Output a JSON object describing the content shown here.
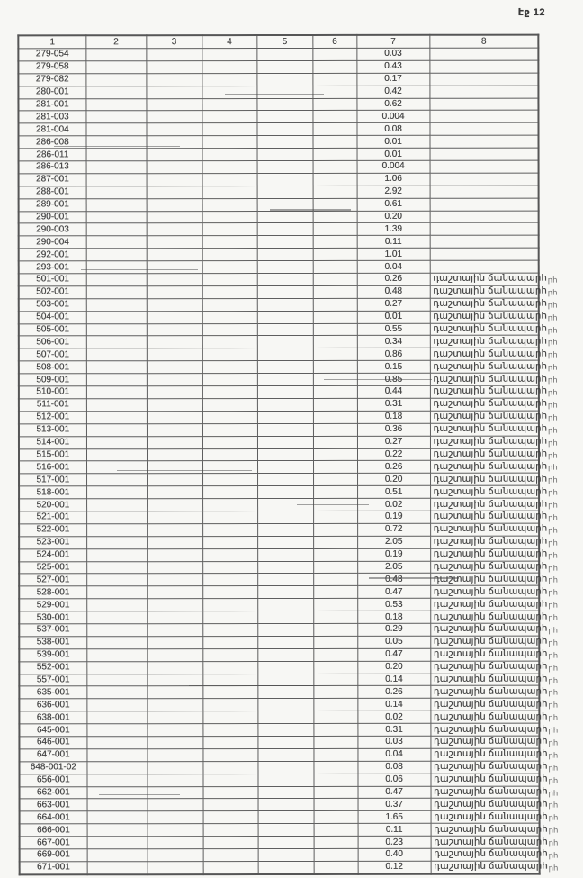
{
  "page": {
    "number_label": "էջ 12"
  },
  "table": {
    "headers": [
      "1",
      "2",
      "3",
      "4",
      "5",
      "6",
      "7",
      "8"
    ],
    "field_road_label": "դաշտային ճանապարհ",
    "margin_mark": "րհ",
    "rows": [
      {
        "code": "279-054",
        "value": "0.03",
        "road_note": false
      },
      {
        "code": "279-058",
        "value": "0.43",
        "road_note": false
      },
      {
        "code": "279-082",
        "value": "0.17",
        "road_note": false
      },
      {
        "code": "280-001",
        "value": "0.42",
        "road_note": false
      },
      {
        "code": "281-001",
        "value": "0.62",
        "road_note": false
      },
      {
        "code": "281-003",
        "value": "0.004",
        "road_note": false
      },
      {
        "code": "281-004",
        "value": "0.08",
        "road_note": false
      },
      {
        "code": "286-008",
        "value": "0.01",
        "road_note": false
      },
      {
        "code": "286-011",
        "value": "0.01",
        "road_note": false
      },
      {
        "code": "286-013",
        "value": "0.004",
        "road_note": false
      },
      {
        "code": "287-001",
        "value": "1.06",
        "road_note": false
      },
      {
        "code": "288-001",
        "value": "2.92",
        "road_note": false
      },
      {
        "code": "289-001",
        "value": "0.61",
        "road_note": false
      },
      {
        "code": "290-001",
        "value": "0.20",
        "road_note": false
      },
      {
        "code": "290-003",
        "value": "1.39",
        "road_note": false
      },
      {
        "code": "290-004",
        "value": "0.11",
        "road_note": false
      },
      {
        "code": "292-001",
        "value": "1.01",
        "road_note": false
      },
      {
        "code": "293-001",
        "value": "0.04",
        "road_note": false
      },
      {
        "code": "501-001",
        "value": "0.26",
        "road_note": true
      },
      {
        "code": "502-001",
        "value": "0.48",
        "road_note": true
      },
      {
        "code": "503-001",
        "value": "0.27",
        "road_note": true
      },
      {
        "code": "504-001",
        "value": "0.01",
        "road_note": true
      },
      {
        "code": "505-001",
        "value": "0.55",
        "road_note": true
      },
      {
        "code": "506-001",
        "value": "0.34",
        "road_note": true
      },
      {
        "code": "507-001",
        "value": "0.86",
        "road_note": true
      },
      {
        "code": "508-001",
        "value": "0.15",
        "road_note": true
      },
      {
        "code": "509-001",
        "value": "0.85",
        "road_note": true
      },
      {
        "code": "510-001",
        "value": "0.44",
        "road_note": true
      },
      {
        "code": "511-001",
        "value": "0.31",
        "road_note": true
      },
      {
        "code": "512-001",
        "value": "0.18",
        "road_note": true
      },
      {
        "code": "513-001",
        "value": "0.36",
        "road_note": true
      },
      {
        "code": "514-001",
        "value": "0.27",
        "road_note": true
      },
      {
        "code": "515-001",
        "value": "0.22",
        "road_note": true
      },
      {
        "code": "516-001",
        "value": "0.26",
        "road_note": true
      },
      {
        "code": "517-001",
        "value": "0.20",
        "road_note": true
      },
      {
        "code": "518-001",
        "value": "0.51",
        "road_note": true
      },
      {
        "code": "520-001",
        "value": "0.02",
        "road_note": true
      },
      {
        "code": "521-001",
        "value": "0.19",
        "road_note": true
      },
      {
        "code": "522-001",
        "value": "0.72",
        "road_note": true
      },
      {
        "code": "523-001",
        "value": "2.05",
        "road_note": true
      },
      {
        "code": "524-001",
        "value": "0.19",
        "road_note": true
      },
      {
        "code": "525-001",
        "value": "2.05",
        "road_note": true
      },
      {
        "code": "527-001",
        "value": "0.48",
        "road_note": true
      },
      {
        "code": "528-001",
        "value": "0.47",
        "road_note": true
      },
      {
        "code": "529-001",
        "value": "0.53",
        "road_note": true
      },
      {
        "code": "530-001",
        "value": "0.18",
        "road_note": true
      },
      {
        "code": "537-001",
        "value": "0.29",
        "road_note": true
      },
      {
        "code": "538-001",
        "value": "0.05",
        "road_note": true
      },
      {
        "code": "539-001",
        "value": "0.47",
        "road_note": true
      },
      {
        "code": "552-001",
        "value": "0.20",
        "road_note": true
      },
      {
        "code": "557-001",
        "value": "0.14",
        "road_note": true
      },
      {
        "code": "635-001",
        "value": "0.26",
        "road_note": true
      },
      {
        "code": "636-001",
        "value": "0.14",
        "road_note": true
      },
      {
        "code": "638-001",
        "value": "0.02",
        "road_note": true
      },
      {
        "code": "645-001",
        "value": "0.31",
        "road_note": true
      },
      {
        "code": "646-001",
        "value": "0.03",
        "road_note": true
      },
      {
        "code": "647-001",
        "value": "0.04",
        "road_note": true
      },
      {
        "code": "648-001-02",
        "value": "0.08",
        "road_note": true
      },
      {
        "code": "656-001",
        "value": "0.06",
        "road_note": true
      },
      {
        "code": "662-001",
        "value": "0.47",
        "road_note": true
      },
      {
        "code": "663-001",
        "value": "0.37",
        "road_note": true
      },
      {
        "code": "664-001",
        "value": "1.65",
        "road_note": true
      },
      {
        "code": "666-001",
        "value": "0.11",
        "road_note": true
      },
      {
        "code": "667-001",
        "value": "0.23",
        "road_note": true
      },
      {
        "code": "669-001",
        "value": "0.40",
        "road_note": true
      },
      {
        "code": "671-001",
        "value": "0.12",
        "road_note": true
      }
    ]
  }
}
